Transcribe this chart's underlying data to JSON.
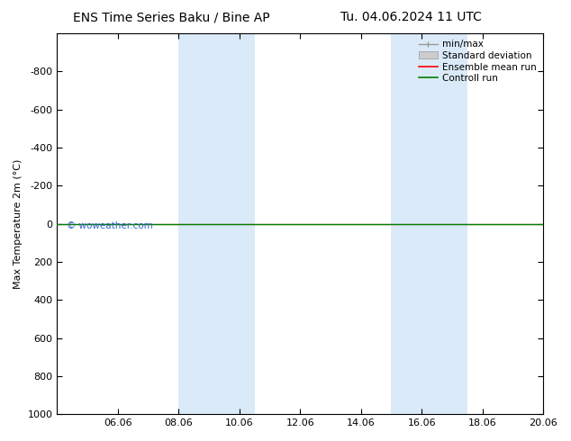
{
  "title_left": "ENS Time Series Baku / Bine AP",
  "title_right": "Tu. 04.06.2024 11 UTC",
  "ylabel": "Max Temperature 2m (°C)",
  "ylim_bottom": -1000,
  "ylim_top": 1000,
  "yticks": [
    -800,
    -600,
    -400,
    -200,
    0,
    200,
    400,
    600,
    800,
    1000
  ],
  "xtick_labels": [
    "06.06",
    "08.06",
    "10.06",
    "12.06",
    "14.06",
    "16.06",
    "18.06",
    "20.06"
  ],
  "xtick_positions": [
    2,
    4,
    6,
    8,
    10,
    12,
    14,
    16
  ],
  "x_min": 0,
  "x_max": 16,
  "shaded_bands": [
    {
      "x_start": 4,
      "x_end": 6.5
    },
    {
      "x_start": 11,
      "x_end": 13.5
    }
  ],
  "line_color_ensemble": "#ff0000",
  "line_color_control": "#008000",
  "line_color_minmax": "#999999",
  "std_dev_color": "#cccccc",
  "background_color": "#ffffff",
  "plot_bg_color": "#ffffff",
  "shaded_color": "#daeaf8",
  "watermark": "© woweather.com",
  "watermark_color": "#3366cc",
  "legend_items": [
    "min/max",
    "Standard deviation",
    "Ensemble mean run",
    "Controll run"
  ],
  "legend_colors": [
    "#999999",
    "#cccccc",
    "#ff0000",
    "#008000"
  ],
  "title_fontsize": 10,
  "axis_fontsize": 8,
  "tick_fontsize": 8,
  "legend_fontsize": 7.5
}
